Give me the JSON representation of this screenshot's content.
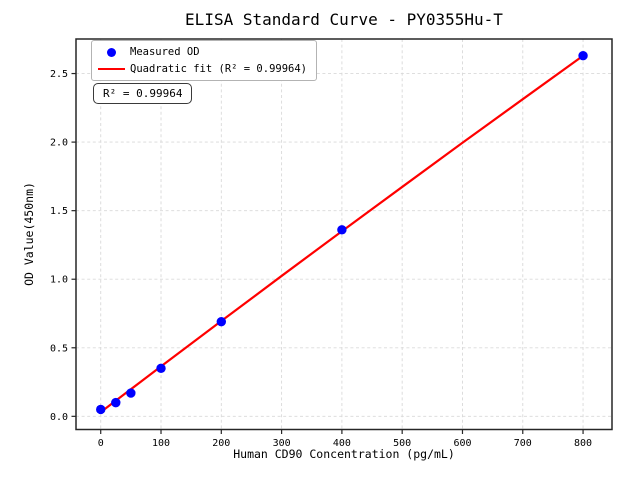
{
  "chart": {
    "legend": {
      "measured_label": "Measured OD",
      "fit_label": "Quadratic fit (R² = 0.99964)"
    },
    "annotation": "R² = 0.99964",
    "colors": {
      "measured_point": "#0000ff",
      "fit_line": "#ff0000",
      "grid": "#d9d9d9",
      "spine": "#262626",
      "tick": "#262626",
      "legend_border": "#b3b3b3",
      "annotation_border": "#3a3a3a",
      "background": "#ffffff"
    }
  },
  "chart_data": {
    "type": "scatter",
    "title": "ELISA Standard Curve - PY0355Hu-T",
    "xlabel": "Human CD90 Concentration (pg/mL)",
    "ylabel": "OD Value(450nm)",
    "legend_position": "upper left",
    "grid": true,
    "grid_style": "dashed",
    "xlim": [
      -41,
      848
    ],
    "ylim": [
      -0.096,
      2.752
    ],
    "xticks": [
      0,
      100,
      200,
      300,
      400,
      500,
      600,
      700,
      800
    ],
    "yticks": [
      0.0,
      0.5,
      1.0,
      1.5,
      2.0,
      2.5
    ],
    "series": [
      {
        "name": "Measured OD",
        "type": "scatter",
        "x": [
          0,
          25,
          50,
          100,
          200,
          400,
          800
        ],
        "y": [
          0.05,
          0.1,
          0.17,
          0.35,
          0.69,
          1.36,
          2.63
        ]
      },
      {
        "name": "Quadratic fit",
        "type": "line",
        "r_squared": 0.99964,
        "x": [
          0,
          100,
          200,
          300,
          400,
          500,
          600,
          700,
          800
        ],
        "y": [
          0.031,
          0.364,
          0.695,
          1.024,
          1.35,
          1.673,
          1.995,
          2.313,
          2.63
        ]
      }
    ]
  }
}
